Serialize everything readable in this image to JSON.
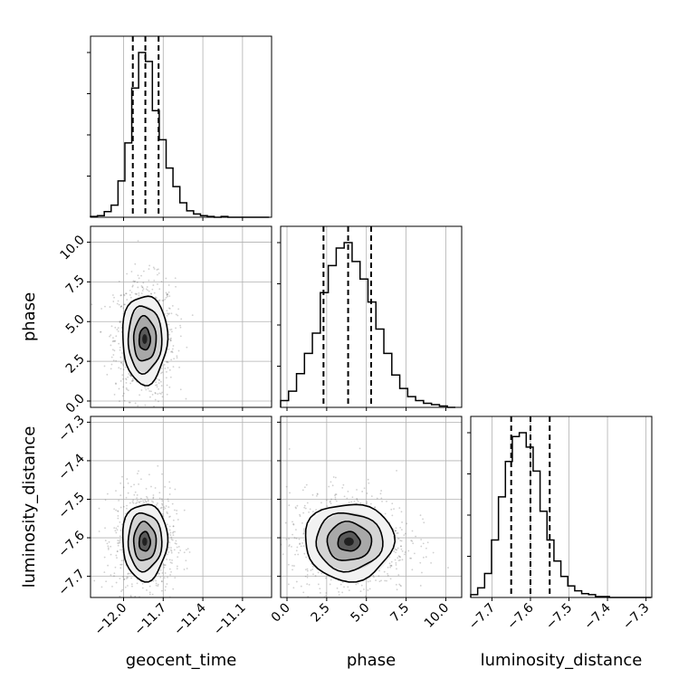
{
  "chart_data": {
    "type": "corner",
    "parameters": [
      "geocent_time",
      "phase",
      "luminosity_distance"
    ],
    "xlabels": [
      "geocent_time",
      "phase",
      "luminosity_distance"
    ],
    "ylabels": [
      "",
      "phase",
      "luminosity_distance"
    ],
    "colors": {
      "line": "#000000",
      "grid": "#b0b0b0",
      "scatter": "#555555"
    },
    "grid": true,
    "ranges": {
      "geocent_time": [
        -12.25,
        -10.88
      ],
      "phase": [
        -0.4,
        11.0
      ],
      "luminosity_distance": [
        -7.755,
        -7.285
      ]
    },
    "ticks": {
      "geocent_time": [
        -12.0,
        -11.7,
        -11.4,
        -11.1
      ],
      "phase": [
        0.0,
        2.5,
        5.0,
        7.5,
        10.0
      ],
      "luminosity_distance": [
        -7.7,
        -7.6,
        -7.5,
        -7.4,
        -7.3
      ]
    },
    "tick_labels": {
      "geocent_time": [
        "−12.0",
        "−11.7",
        "−11.4",
        "−11.1"
      ],
      "phase": [
        "0.0",
        "2.5",
        "5.0",
        "7.5",
        "10.0"
      ],
      "luminosity_distance": [
        "−7.7",
        "−7.6",
        "−7.5",
        "−7.4",
        "−7.3"
      ]
    },
    "marginals": [
      {
        "parameter": "geocent_time",
        "quantiles": [
          -11.93,
          -11.835,
          -11.735
        ],
        "bin_edges": [
          -12.25,
          -12.198,
          -12.146,
          -12.094,
          -12.042,
          -11.99,
          -11.938,
          -11.886,
          -11.834,
          -11.782,
          -11.73,
          -11.678,
          -11.626,
          -11.574,
          -11.522,
          -11.47,
          -11.418,
          -11.366,
          -11.314,
          -11.262,
          -11.21,
          -11.158,
          -11.106,
          -11.054,
          -11.002,
          -10.95,
          -10.898
        ],
        "counts": [
          1,
          2,
          7,
          15,
          45,
          92,
          160,
          204,
          193,
          132,
          96,
          61,
          38,
          18,
          8,
          4,
          2,
          1,
          0,
          1,
          0,
          0,
          0,
          0,
          0,
          0
        ]
      },
      {
        "parameter": "phase",
        "quantiles": [
          2.3,
          3.85,
          5.3
        ],
        "bin_edges": [
          -0.4,
          0.1,
          0.6,
          1.1,
          1.6,
          2.1,
          2.6,
          3.1,
          3.6,
          4.1,
          4.6,
          5.1,
          5.6,
          6.1,
          6.6,
          7.1,
          7.6,
          8.1,
          8.6,
          9.1,
          9.6,
          10.1,
          10.6
        ],
        "counts": [
          5,
          12,
          25,
          40,
          55,
          85,
          105,
          118,
          122,
          108,
          95,
          78,
          58,
          40,
          24,
          14,
          8,
          5,
          3,
          2,
          1,
          0
        ]
      },
      {
        "parameter": "luminosity_distance",
        "quantiles": [
          -7.65,
          -7.6,
          -7.55
        ],
        "bin_edges": [
          -7.755,
          -7.737,
          -7.719,
          -7.701,
          -7.683,
          -7.665,
          -7.647,
          -7.629,
          -7.611,
          -7.593,
          -7.575,
          -7.557,
          -7.539,
          -7.521,
          -7.503,
          -7.485,
          -7.467,
          -7.449,
          -7.431,
          -7.413,
          -7.395,
          -7.377,
          -7.359,
          -7.341,
          -7.323,
          -7.305,
          -7.287
        ],
        "counts": [
          3,
          10,
          25,
          60,
          105,
          142,
          168,
          172,
          157,
          132,
          90,
          60,
          38,
          22,
          12,
          7,
          4,
          3,
          1,
          1,
          0,
          0,
          0,
          0,
          0,
          0
        ]
      }
    ],
    "pairs": [
      {
        "x": "geocent_time",
        "y": "phase",
        "center": [
          -11.84,
          3.9
        ],
        "sigma": [
          0.085,
          1.4
        ]
      },
      {
        "x": "geocent_time",
        "y": "luminosity_distance",
        "center": [
          -11.84,
          -7.61
        ],
        "sigma": [
          0.085,
          0.05
        ]
      },
      {
        "x": "phase",
        "y": "luminosity_distance",
        "center": [
          3.9,
          -7.61
        ],
        "sigma": [
          1.4,
          0.05
        ]
      }
    ],
    "contour_levels": [
      0.5,
      1.0,
      1.5,
      2.0
    ]
  }
}
